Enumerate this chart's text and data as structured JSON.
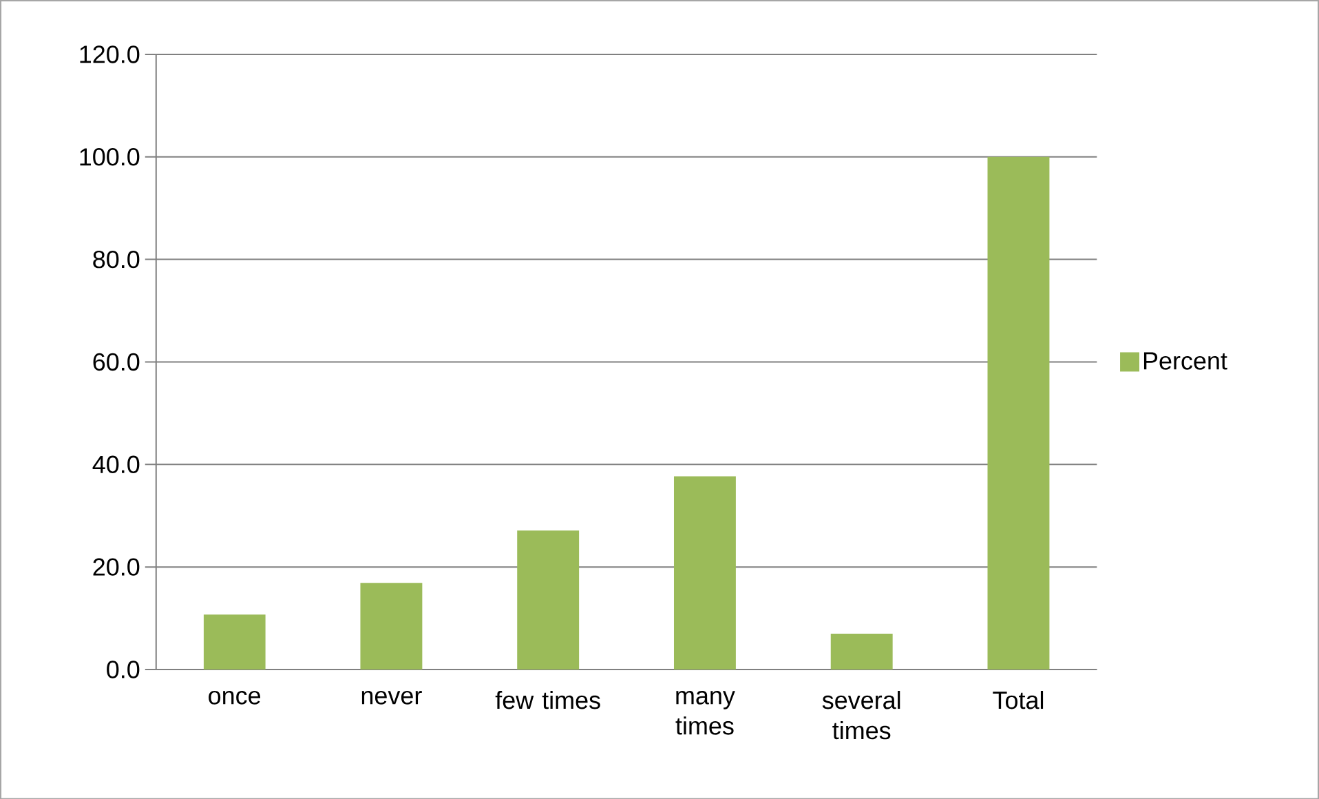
{
  "chart_data": {
    "type": "bar",
    "categories": [
      "once",
      "never",
      "few times",
      "many times",
      "several times",
      "Total"
    ],
    "series": [
      {
        "name": "Percent",
        "color": "#9bbb59",
        "values": [
          10.7,
          16.9,
          27.1,
          37.7,
          7.0,
          100
        ]
      }
    ],
    "ylim": [
      0,
      120
    ],
    "yticks": [
      {
        "value": 0,
        "label": "0.0"
      },
      {
        "value": 20,
        "label": "20.0"
      },
      {
        "value": 40,
        "label": "40.0"
      },
      {
        "value": 60,
        "label": "60.0"
      },
      {
        "value": 80,
        "label": "80.0"
      },
      {
        "value": 100,
        "label": "100.0"
      },
      {
        "value": 120,
        "label": "120.0"
      }
    ],
    "grid": "y",
    "legend": "right"
  }
}
